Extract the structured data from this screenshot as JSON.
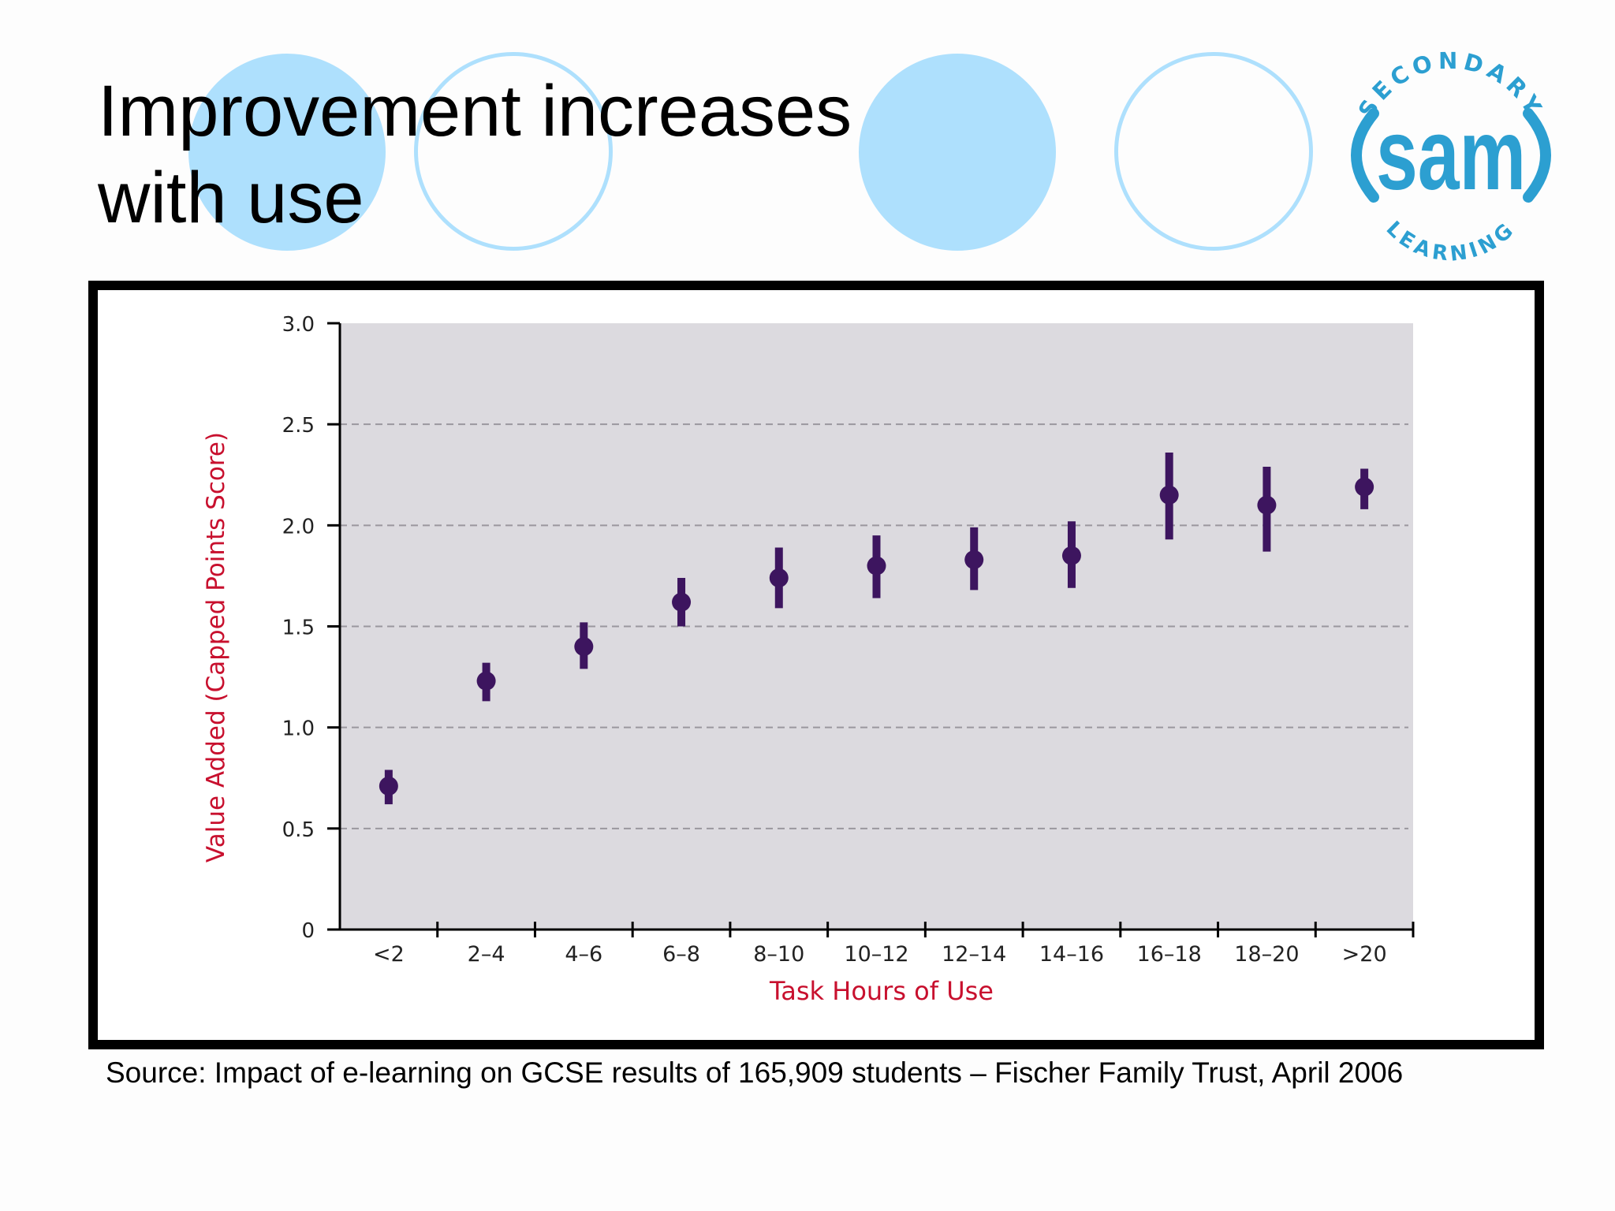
{
  "slide": {
    "title": "Improvement increases\nwith use",
    "source": "Source: Impact of e-learning on GCSE results of 165,909 students – Fischer Family Trust, April 2006"
  },
  "logo": {
    "top_text": "SECONDARY",
    "main_text": "sam",
    "bottom_text": "LEARNING",
    "color": "#2c9fd1"
  },
  "colors": {
    "decoration": "#aee0fd",
    "plot_background": "#dcdadf",
    "marker": "#3d155f",
    "axis_label": "#c8102e"
  },
  "chart_data": {
    "type": "scatter",
    "error_bars": true,
    "xlabel": "Task Hours of Use",
    "ylabel": "Value Added (Capped Points Score)",
    "ylim": [
      0,
      3.0
    ],
    "yticks": [
      "0",
      "0.5",
      "1.0",
      "1.5",
      "2.0",
      "2.5",
      "3.0"
    ],
    "grid": "horizontal dashed",
    "categories": [
      "<2",
      "2–4",
      "4–6",
      "6–8",
      "8–10",
      "10–12",
      "12–14",
      "14–16",
      "16–18",
      "18–20",
      ">20"
    ],
    "values": [
      0.71,
      1.23,
      1.4,
      1.62,
      1.74,
      1.8,
      1.83,
      1.85,
      2.15,
      2.1,
      2.19
    ],
    "lower": [
      0.62,
      1.13,
      1.29,
      1.5,
      1.59,
      1.64,
      1.68,
      1.69,
      1.93,
      1.87,
      2.08
    ],
    "upper": [
      0.79,
      1.32,
      1.52,
      1.74,
      1.89,
      1.95,
      1.99,
      2.02,
      2.36,
      2.29,
      2.28
    ]
  }
}
